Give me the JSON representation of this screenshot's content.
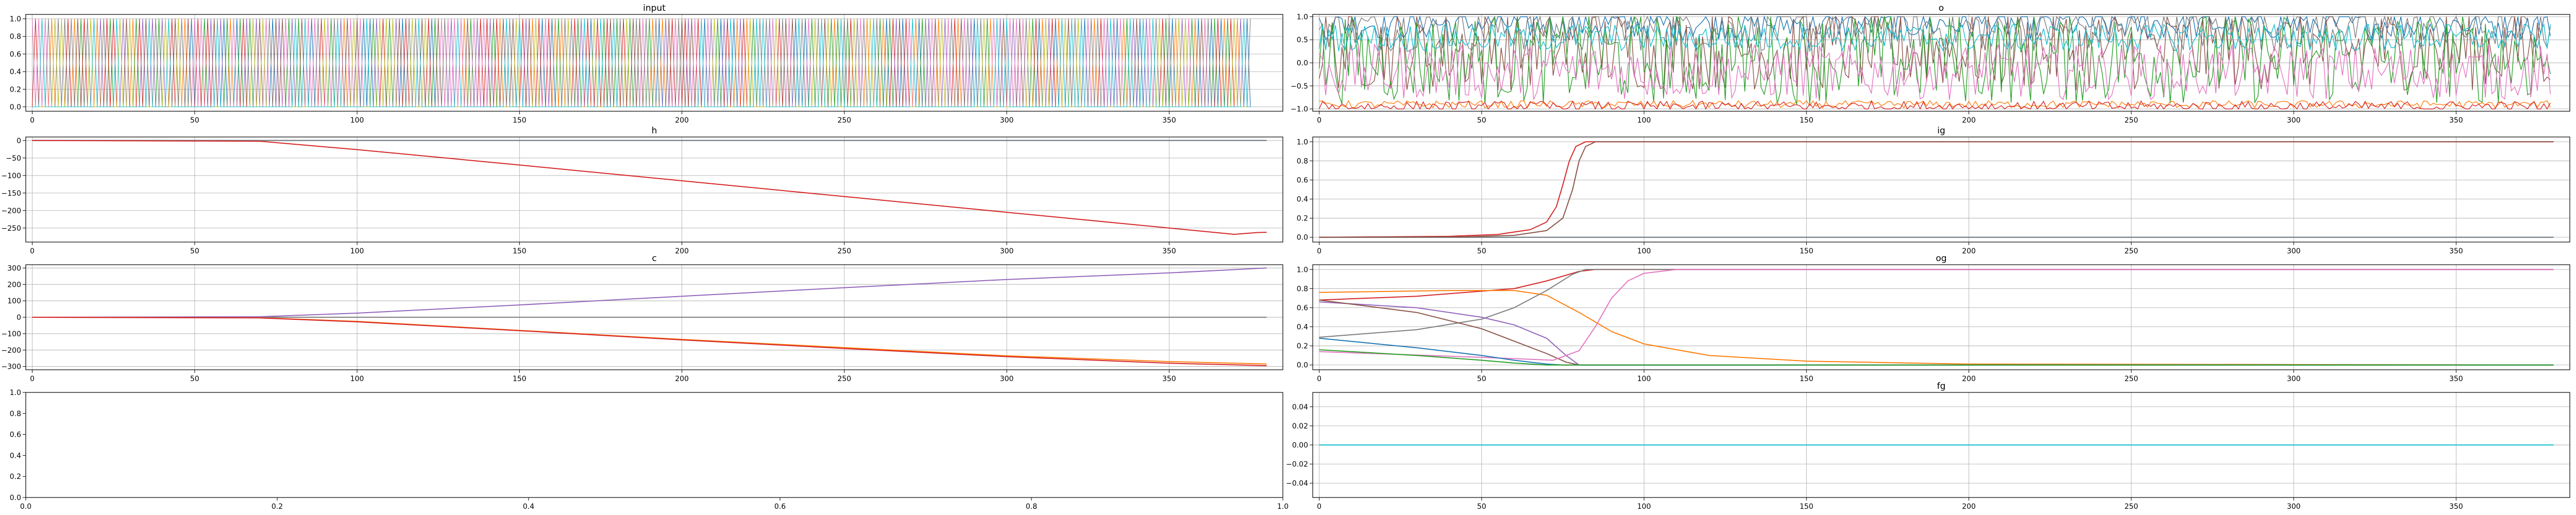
{
  "colors": [
    "#1f77b4",
    "#ff7f0e",
    "#2ca02c",
    "#d62728",
    "#9467bd",
    "#8c564b",
    "#e377c2",
    "#7f7f7f",
    "#bcbd22",
    "#17becf"
  ],
  "chart_data": [
    {
      "id": "input",
      "type": "line",
      "title": "input",
      "xlim": [
        -2,
        385
      ],
      "ylim": [
        -0.05,
        1.05
      ],
      "xticks": [
        0,
        50,
        100,
        150,
        200,
        250,
        300,
        350
      ],
      "yticks": [
        0.0,
        0.2,
        0.4,
        0.6,
        0.8,
        1.0
      ],
      "ytick_labels": [
        "0.0",
        "0.2",
        "0.4",
        "0.6",
        "0.8",
        "1.0"
      ],
      "grid": true,
      "description_of_series": "many one-hot binary series switching between 0 and 1 across steps 0-375",
      "series_count": 10,
      "length": 376
    },
    {
      "id": "o",
      "type": "line",
      "title": "o",
      "xlim": [
        -2,
        385
      ],
      "ylim": [
        -1.05,
        1.05
      ],
      "xticks": [
        0,
        50,
        100,
        150,
        200,
        250,
        300,
        350
      ],
      "yticks": [
        -1.0,
        -0.5,
        0.0,
        0.5,
        1.0
      ],
      "ytick_labels": [
        "−1.0",
        "−0.5",
        "0.0",
        "0.5",
        "1.0"
      ],
      "grid": true,
      "series_count": 8,
      "length": 380
    },
    {
      "id": "h",
      "type": "line",
      "title": "h",
      "xlim": [
        -2,
        385
      ],
      "ylim": [
        -290,
        10
      ],
      "xticks": [
        0,
        50,
        100,
        150,
        200,
        250,
        300,
        350
      ],
      "yticks": [
        0,
        -50,
        -100,
        -150,
        -200,
        -250
      ],
      "ytick_labels": [
        "0",
        "−50",
        "−100",
        "−150",
        "−200",
        "−250"
      ],
      "grid": true,
      "series": [
        {
          "name": "",
          "color_index": 0,
          "points": [
            [
              0,
              0
            ],
            [
              380,
              0
            ]
          ]
        },
        {
          "name": "",
          "color_index": 7,
          "points": [
            [
              0,
              0
            ],
            [
              380,
              0
            ]
          ]
        },
        {
          "name": "",
          "color_index": 3,
          "points": [
            [
              0,
              0
            ],
            [
              70,
              -2
            ],
            [
              100,
              -26
            ],
            [
              150,
              -70
            ],
            [
              200,
              -115
            ],
            [
              250,
              -160
            ],
            [
              300,
              -205
            ],
            [
              350,
              -250
            ],
            [
              370,
              -268
            ],
            [
              377,
              -263
            ],
            [
              380,
              -262
            ]
          ]
        }
      ]
    },
    {
      "id": "ig",
      "type": "line",
      "title": "ig",
      "xlim": [
        -2,
        385
      ],
      "ylim": [
        -0.05,
        1.05
      ],
      "xticks": [
        0,
        50,
        100,
        150,
        200,
        250,
        300,
        350
      ],
      "yticks": [
        0.0,
        0.2,
        0.4,
        0.6,
        0.8,
        1.0
      ],
      "ytick_labels": [
        "0.0",
        "0.2",
        "0.4",
        "0.6",
        "0.8",
        "1.0"
      ],
      "grid": true,
      "series": [
        {
          "name": "",
          "color_index": 0,
          "points": [
            [
              0,
              0
            ],
            [
              380,
              0
            ]
          ]
        },
        {
          "name": "",
          "color_index": 7,
          "points": [
            [
              0,
              0
            ],
            [
              380,
              0
            ]
          ]
        },
        {
          "name": "",
          "color_index": 3,
          "points": [
            [
              0,
              0.0
            ],
            [
              40,
              0.01
            ],
            [
              55,
              0.03
            ],
            [
              65,
              0.08
            ],
            [
              70,
              0.16
            ],
            [
              73,
              0.32
            ],
            [
              75,
              0.55
            ],
            [
              77,
              0.8
            ],
            [
              79,
              0.95
            ],
            [
              82,
              1.0
            ],
            [
              380,
              1.0
            ]
          ]
        },
        {
          "name": "",
          "color_index": 5,
          "points": [
            [
              0,
              0.0
            ],
            [
              45,
              0.005
            ],
            [
              60,
              0.02
            ],
            [
              70,
              0.07
            ],
            [
              75,
              0.2
            ],
            [
              78,
              0.5
            ],
            [
              80,
              0.8
            ],
            [
              82,
              0.95
            ],
            [
              85,
              1.0
            ],
            [
              380,
              1.0
            ]
          ]
        }
      ]
    },
    {
      "id": "c",
      "type": "line",
      "title": "c",
      "xlim": [
        -2,
        385
      ],
      "ylim": [
        -320,
        320
      ],
      "xticks": [
        0,
        50,
        100,
        150,
        200,
        250,
        300,
        350
      ],
      "yticks": [
        300,
        200,
        100,
        0,
        -100,
        -200,
        -300
      ],
      "ytick_labels": [
        "300",
        "200",
        "100",
        "0",
        "−100",
        "−200",
        "−300"
      ],
      "grid": true,
      "series": [
        {
          "name": "",
          "color_index": 0,
          "points": [
            [
              0,
              0
            ],
            [
              380,
              0
            ]
          ]
        },
        {
          "name": "",
          "color_index": 7,
          "points": [
            [
              0,
              0
            ],
            [
              380,
              0
            ]
          ]
        },
        {
          "name": "",
          "color_index": 4,
          "points": [
            [
              0,
              0
            ],
            [
              70,
              3
            ],
            [
              100,
              25
            ],
            [
              150,
              75
            ],
            [
              200,
              128
            ],
            [
              250,
              180
            ],
            [
              300,
              230
            ],
            [
              350,
              270
            ],
            [
              380,
              300
            ]
          ]
        },
        {
          "name": "",
          "color_index": 1,
          "points": [
            [
              0,
              0
            ],
            [
              70,
              -3
            ],
            [
              100,
              -25
            ],
            [
              150,
              -80
            ],
            [
              200,
              -135
            ],
            [
              250,
              -185
            ],
            [
              300,
              -235
            ],
            [
              350,
              -270
            ],
            [
              380,
              -285
            ]
          ]
        },
        {
          "name": "",
          "color_index": 3,
          "points": [
            [
              0,
              0
            ],
            [
              70,
              -4
            ],
            [
              100,
              -28
            ],
            [
              150,
              -82
            ],
            [
              200,
              -138
            ],
            [
              250,
              -190
            ],
            [
              300,
              -240
            ],
            [
              350,
              -280
            ],
            [
              380,
              -295
            ]
          ]
        }
      ]
    },
    {
      "id": "og",
      "type": "line",
      "title": "og",
      "xlim": [
        -2,
        385
      ],
      "ylim": [
        -0.05,
        1.05
      ],
      "xticks": [
        0,
        50,
        100,
        150,
        200,
        250,
        300,
        350
      ],
      "yticks": [
        0.0,
        0.2,
        0.4,
        0.6,
        0.8,
        1.0
      ],
      "ytick_labels": [
        "0.0",
        "0.2",
        "0.4",
        "0.6",
        "0.8",
        "1.0"
      ],
      "grid": true,
      "series": [
        {
          "name": "",
          "color_index": 3,
          "points": [
            [
              0,
              0.68
            ],
            [
              30,
              0.72
            ],
            [
              60,
              0.8
            ],
            [
              70,
              0.88
            ],
            [
              80,
              0.98
            ],
            [
              85,
              1.0
            ],
            [
              380,
              1.0
            ]
          ]
        },
        {
          "name": "",
          "color_index": 1,
          "points": [
            [
              0,
              0.76
            ],
            [
              40,
              0.78
            ],
            [
              60,
              0.78
            ],
            [
              70,
              0.73
            ],
            [
              80,
              0.55
            ],
            [
              90,
              0.35
            ],
            [
              100,
              0.22
            ],
            [
              120,
              0.1
            ],
            [
              150,
              0.04
            ],
            [
              200,
              0.01
            ],
            [
              380,
              0.0
            ]
          ]
        },
        {
          "name": "",
          "color_index": 7,
          "points": [
            [
              0,
              0.29
            ],
            [
              30,
              0.37
            ],
            [
              50,
              0.48
            ],
            [
              60,
              0.6
            ],
            [
              70,
              0.78
            ],
            [
              78,
              0.95
            ],
            [
              82,
              1.0
            ],
            [
              380,
              1.0
            ]
          ]
        },
        {
          "name": "",
          "color_index": 4,
          "points": [
            [
              0,
              0.66
            ],
            [
              30,
              0.6
            ],
            [
              50,
              0.5
            ],
            [
              60,
              0.42
            ],
            [
              70,
              0.28
            ],
            [
              76,
              0.1
            ],
            [
              80,
              0.0
            ],
            [
              380,
              0.0
            ]
          ]
        },
        {
          "name": "",
          "color_index": 5,
          "points": [
            [
              0,
              0.68
            ],
            [
              30,
              0.55
            ],
            [
              50,
              0.38
            ],
            [
              60,
              0.25
            ],
            [
              70,
              0.12
            ],
            [
              76,
              0.03
            ],
            [
              80,
              0.0
            ],
            [
              380,
              0.0
            ]
          ]
        },
        {
          "name": "",
          "color_index": 6,
          "points": [
            [
              0,
              0.14
            ],
            [
              50,
              0.08
            ],
            [
              65,
              0.06
            ],
            [
              72,
              0.05
            ],
            [
              80,
              0.15
            ],
            [
              85,
              0.4
            ],
            [
              90,
              0.7
            ],
            [
              95,
              0.88
            ],
            [
              100,
              0.96
            ],
            [
              110,
              1.0
            ],
            [
              380,
              1.0
            ]
          ]
        },
        {
          "name": "",
          "color_index": 0,
          "points": [
            [
              0,
              0.28
            ],
            [
              30,
              0.18
            ],
            [
              50,
              0.1
            ],
            [
              60,
              0.05
            ],
            [
              70,
              0.01
            ],
            [
              75,
              0.0
            ],
            [
              380,
              0.0
            ]
          ]
        },
        {
          "name": "",
          "color_index": 2,
          "points": [
            [
              0,
              0.16
            ],
            [
              30,
              0.1
            ],
            [
              50,
              0.05
            ],
            [
              60,
              0.02
            ],
            [
              70,
              0.0
            ],
            [
              380,
              0.0
            ]
          ]
        }
      ]
    },
    {
      "id": "blank",
      "type": "line",
      "title": "",
      "xlim": [
        0.0,
        1.0
      ],
      "ylim": [
        0.0,
        1.0
      ],
      "xticks": [
        0.0,
        0.2,
        0.4,
        0.6,
        0.8,
        1.0
      ],
      "xtick_labels": [
        "0.0",
        "0.2",
        "0.4",
        "0.6",
        "0.8",
        "1.0"
      ],
      "yticks": [
        0.0,
        0.2,
        0.4,
        0.6,
        0.8,
        1.0
      ],
      "ytick_labels": [
        "0.0",
        "0.2",
        "0.4",
        "0.6",
        "0.8",
        "1.0"
      ],
      "grid": false,
      "series": []
    },
    {
      "id": "fg",
      "type": "line",
      "title": "fg",
      "xlim": [
        -2,
        385
      ],
      "ylim": [
        -0.055,
        0.055
      ],
      "xticks": [
        0,
        50,
        100,
        150,
        200,
        250,
        300,
        350
      ],
      "yticks": [
        0.04,
        0.02,
        0.0,
        -0.02,
        -0.04
      ],
      "ytick_labels": [
        "0.04",
        "0.02",
        "0.00",
        "−0.02",
        "−0.04"
      ],
      "grid": true,
      "series": [
        {
          "name": "",
          "color_index": 0,
          "points": [
            [
              0,
              0
            ],
            [
              380,
              0
            ]
          ]
        },
        {
          "name": "",
          "color_index": 9,
          "points": [
            [
              0,
              0
            ],
            [
              380,
              0
            ]
          ]
        }
      ]
    }
  ]
}
